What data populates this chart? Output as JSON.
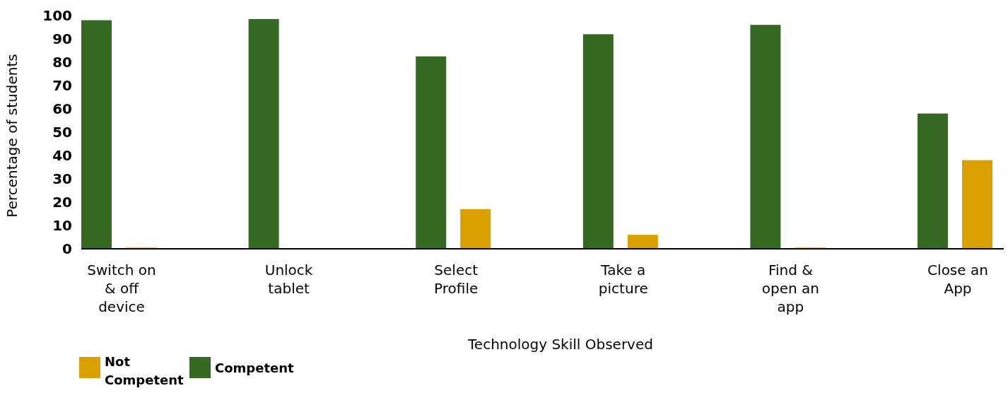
{
  "chart_data": {
    "type": "bar",
    "xlabel": "Technology Skill Observed",
    "ylabel": "Percentage of students",
    "categories": [
      "Switch on & off device",
      "Unlock tablet",
      "Select Profile",
      "Take a picture",
      "Find & open an app",
      "Close an App"
    ],
    "series": [
      {
        "name": "Competent",
        "color": "#356820",
        "values": [
          98,
          98.5,
          82.5,
          92,
          96,
          58
        ]
      },
      {
        "name": "Not Competent",
        "color": "#d9a000",
        "values": [
          0.5,
          0,
          17,
          6,
          0.5,
          38
        ]
      }
    ],
    "ylim": [
      0,
      100
    ],
    "yticks": [
      0,
      10,
      20,
      30,
      40,
      50,
      60,
      70,
      80,
      90,
      100
    ],
    "grid": false,
    "legend": "bottom left"
  }
}
